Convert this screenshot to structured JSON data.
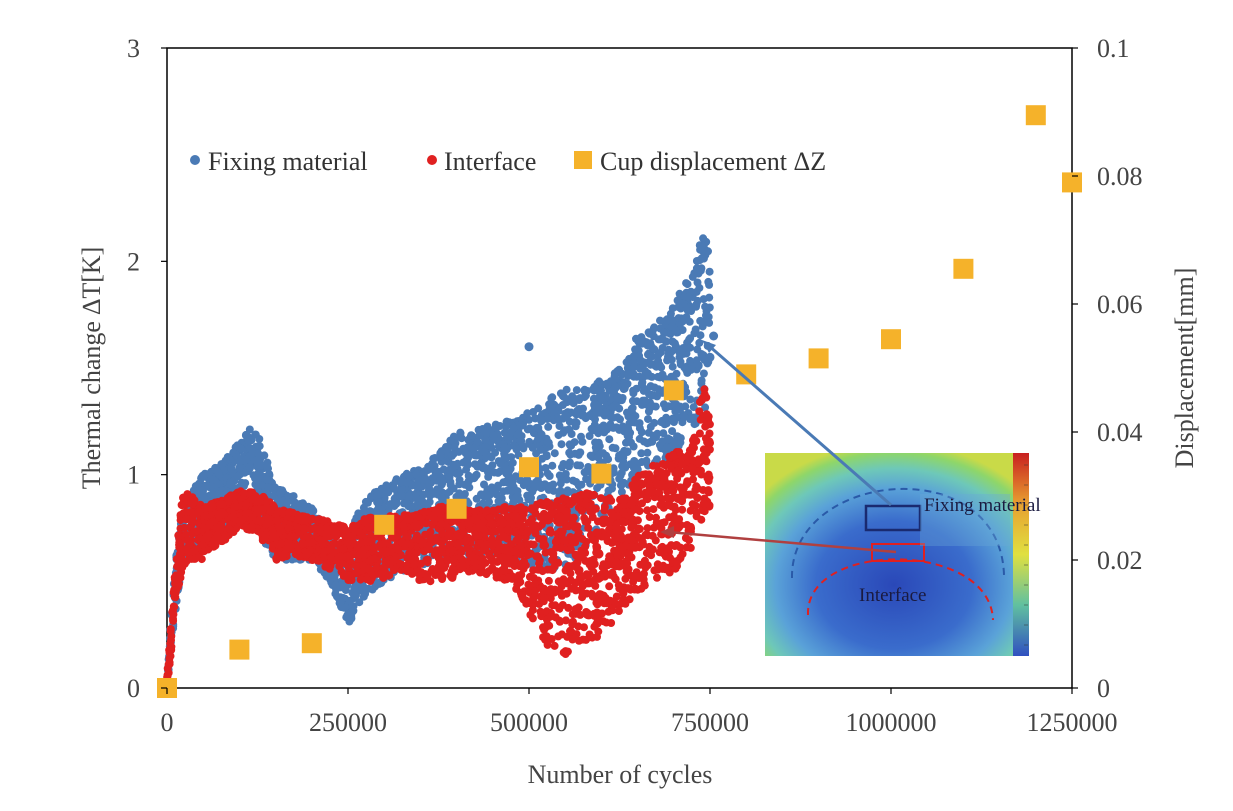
{
  "chart_data": {
    "type": "scatter",
    "xlabel": "Number of cycles",
    "ylabel": "Thermal change ∆T[K]",
    "y2label": "Displacement[mm]",
    "xlim": [
      0,
      1250000
    ],
    "ylim": [
      0,
      3
    ],
    "y2lim": [
      0,
      0.1
    ],
    "x_ticks": [
      "0",
      "250000",
      "500000",
      "750000",
      "1000000",
      "1250000"
    ],
    "y_ticks": [
      "0",
      "1",
      "2",
      "3"
    ],
    "y2_ticks": [
      "0",
      "0.02",
      "0.04",
      "0.06",
      "0.08",
      "0.1"
    ],
    "grid": false,
    "legend_position": "top",
    "series": [
      {
        "name": "Fixing material",
        "axis": "left",
        "marker": "circle",
        "color": "#4a7ab5",
        "band": {
          "x": [
            0,
            10000,
            20000,
            30000,
            50000,
            75000,
            100000,
            120000,
            130000,
            150000,
            175000,
            200000,
            225000,
            250000,
            260000,
            280000,
            300000,
            325000,
            350000,
            375000,
            400000,
            425000,
            450000,
            475000,
            500000,
            525000,
            550000,
            575000,
            600000,
            625000,
            650000,
            675000,
            700000,
            725000,
            740000,
            750000
          ],
          "low": [
            0.0,
            0.3,
            0.55,
            0.65,
            0.7,
            0.75,
            0.8,
            0.78,
            0.7,
            0.6,
            0.6,
            0.6,
            0.5,
            0.3,
            0.35,
            0.45,
            0.5,
            0.55,
            0.55,
            0.6,
            0.6,
            0.62,
            0.6,
            0.6,
            0.55,
            0.55,
            0.55,
            0.65,
            0.75,
            0.9,
            1.0,
            1.05,
            1.1,
            1.2,
            1.25,
            1.3
          ],
          "high": [
            0.05,
            0.55,
            0.8,
            0.9,
            1.0,
            1.05,
            1.15,
            1.25,
            1.15,
            0.95,
            0.9,
            0.85,
            0.7,
            0.65,
            0.8,
            0.9,
            0.95,
            1.0,
            1.05,
            1.1,
            1.2,
            1.2,
            1.25,
            1.25,
            1.3,
            1.35,
            1.4,
            1.4,
            1.45,
            1.5,
            1.65,
            1.7,
            1.8,
            1.95,
            2.15,
            2.05
          ]
        },
        "outliers": [
          [
            500000,
            1.6
          ],
          [
            750000,
            1.55
          ],
          [
            755000,
            1.65
          ]
        ]
      },
      {
        "name": "Interface",
        "axis": "left",
        "marker": "circle",
        "color": "#e02020",
        "band": {
          "x": [
            0,
            10000,
            20000,
            30000,
            50000,
            75000,
            100000,
            125000,
            150000,
            175000,
            200000,
            225000,
            250000,
            275000,
            300000,
            325000,
            350000,
            375000,
            400000,
            425000,
            450000,
            475000,
            500000,
            525000,
            550000,
            575000,
            600000,
            625000,
            650000,
            675000,
            700000,
            725000,
            740000,
            750000
          ],
          "low": [
            0.0,
            0.3,
            0.55,
            0.6,
            0.6,
            0.68,
            0.75,
            0.72,
            0.6,
            0.62,
            0.6,
            0.55,
            0.5,
            0.5,
            0.5,
            0.55,
            0.5,
            0.5,
            0.52,
            0.55,
            0.52,
            0.5,
            0.35,
            0.2,
            0.15,
            0.2,
            0.25,
            0.35,
            0.45,
            0.5,
            0.55,
            0.65,
            0.8,
            0.85
          ],
          "high": [
            0.05,
            0.5,
            0.9,
            0.92,
            0.85,
            0.88,
            0.93,
            0.92,
            0.85,
            0.82,
            0.8,
            0.78,
            0.75,
            0.8,
            0.8,
            0.82,
            0.82,
            0.85,
            0.85,
            0.83,
            0.85,
            0.85,
            0.85,
            0.88,
            0.9,
            0.92,
            0.9,
            0.88,
            1.0,
            1.05,
            1.1,
            1.15,
            1.45,
            1.3
          ]
        }
      },
      {
        "name": "Cup displacement ΔZ",
        "axis": "right",
        "marker": "square",
        "color": "#f5b22a",
        "x": [
          0,
          100000,
          200000,
          300000,
          400000,
          500000,
          600000,
          700000,
          800000,
          900000,
          1000000,
          1100000,
          1200000,
          1250000
        ],
        "y": [
          0.0,
          0.006,
          0.007,
          0.0255,
          0.028,
          0.0345,
          0.0335,
          0.0465,
          0.049,
          0.0515,
          0.0545,
          0.0655,
          0.0895,
          0.079
        ]
      }
    ],
    "inset": {
      "labels": [
        "Fixing material",
        "Interface"
      ]
    }
  }
}
